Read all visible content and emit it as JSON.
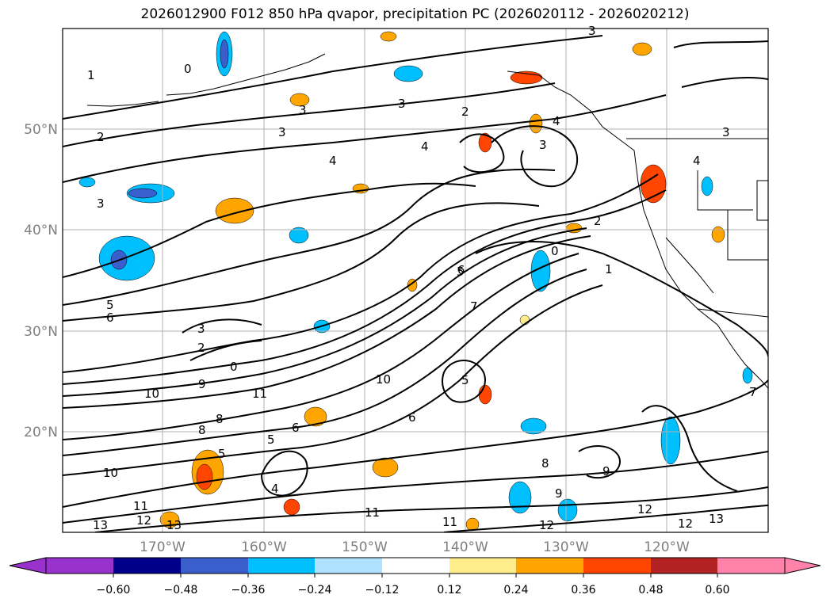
{
  "title": "2026012900 F012 850 hPa qvapor, precipitation PC (2026020112 - 2026020212)",
  "lat_labels": [
    "50°N",
    "40°N",
    "30°N",
    "20°N"
  ],
  "lon_labels": [
    "170°W",
    "160°W",
    "150°W",
    "140°W",
    "130°W",
    "120°W"
  ],
  "contour_labels": [
    "1",
    "0",
    "3",
    "3",
    "2",
    "3",
    "3",
    "4",
    "4",
    "4",
    "3",
    "2",
    "3",
    "3",
    "2",
    "1",
    "4",
    "5",
    "6",
    "2",
    "3",
    "0",
    "9",
    "10",
    "11",
    "6",
    "8",
    "8",
    "5",
    "5",
    "4",
    "6",
    "10",
    "11",
    "13",
    "12",
    "13",
    "10",
    "6",
    "5",
    "0",
    "7",
    "5",
    "8",
    "9",
    "11",
    "11",
    "12",
    "12",
    "12",
    "13",
    "9",
    "7"
  ],
  "colorbar": {
    "tick_labels": [
      "−0.60",
      "−0.48",
      "−0.36",
      "−0.24",
      "−0.12",
      "0.12",
      "0.24",
      "0.36",
      "0.48",
      "0.60"
    ],
    "colors": [
      "#9932cc",
      "#00008b",
      "#3a5fcd",
      "#00bfff",
      "#b0e2ff",
      "#ffffff",
      "#ffec8b",
      "#ffa500",
      "#ff4500",
      "#b22222",
      "#ff82ab"
    ]
  }
}
